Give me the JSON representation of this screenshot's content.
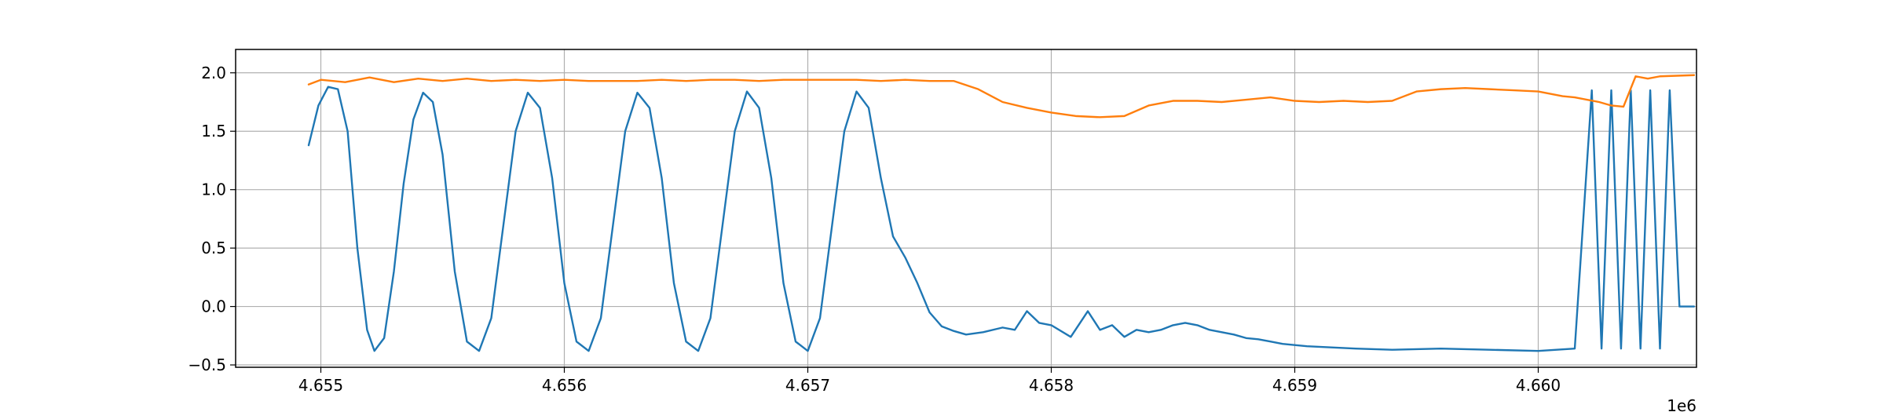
{
  "chart_data": {
    "type": "line",
    "title": "",
    "xlabel": "",
    "ylabel": "",
    "x_offset_label": "1e6",
    "xlim": [
      4.65465,
      4.66065
    ],
    "ylim": [
      -0.52,
      2.2
    ],
    "x_ticks": [
      4.655,
      4.656,
      4.657,
      4.658,
      4.659,
      4.66
    ],
    "x_tick_labels": [
      "4.655",
      "4.656",
      "4.657",
      "4.658",
      "4.659",
      "4.660"
    ],
    "y_ticks": [
      -0.5,
      0.0,
      0.5,
      1.0,
      1.5,
      2.0
    ],
    "y_tick_labels": [
      "−0.5",
      "0.0",
      "0.5",
      "1.0",
      "1.5",
      "2.0"
    ],
    "grid": true,
    "legend": "none",
    "series": [
      {
        "color": "#1f77b4",
        "x": [
          4.65495,
          4.65499,
          4.65503,
          4.65507,
          4.65511,
          4.65515,
          4.65519,
          4.65522,
          4.65526,
          4.6553,
          4.65534,
          4.65538,
          4.65542,
          4.65546,
          4.6555,
          4.65555,
          4.6556,
          4.65565,
          4.6557,
          4.65575,
          4.6558,
          4.65585,
          4.6559,
          4.65595,
          4.656,
          4.65605,
          4.6561,
          4.65615,
          4.6562,
          4.65625,
          4.6563,
          4.65635,
          4.6564,
          4.65645,
          4.6565,
          4.65655,
          4.6566,
          4.65665,
          4.6567,
          4.65675,
          4.6568,
          4.65685,
          4.6569,
          4.65695,
          4.657,
          4.65705,
          4.6571,
          4.65715,
          4.6572,
          4.65725,
          4.6573,
          4.65735,
          4.6574,
          4.65745,
          4.6575,
          4.65755,
          4.6576,
          4.65765,
          4.65772,
          4.6578,
          4.65785,
          4.6579,
          4.65795,
          4.658,
          4.65808,
          4.65815,
          4.6582,
          4.65825,
          4.6583,
          4.65835,
          4.6584,
          4.65845,
          4.6585,
          4.65855,
          4.6586,
          4.65865,
          4.6587,
          4.65875,
          4.6588,
          4.65885,
          4.6589,
          4.65895,
          4.659,
          4.65905,
          4.65915,
          4.65925,
          4.6594,
          4.6596,
          4.6598,
          4.66,
          4.66015,
          4.66022,
          4.66026,
          4.6603,
          4.66034,
          4.66038,
          4.66042,
          4.66046,
          4.6605,
          4.66054,
          4.66058,
          4.66062,
          4.66064
        ],
        "values": [
          1.38,
          1.72,
          1.88,
          1.86,
          1.5,
          0.5,
          -0.2,
          -0.38,
          -0.27,
          0.3,
          1.05,
          1.6,
          1.83,
          1.75,
          1.3,
          0.3,
          -0.3,
          -0.38,
          -0.1,
          0.7,
          1.5,
          1.83,
          1.7,
          1.1,
          0.2,
          -0.3,
          -0.38,
          -0.1,
          0.7,
          1.5,
          1.83,
          1.7,
          1.1,
          0.2,
          -0.3,
          -0.38,
          -0.1,
          0.7,
          1.5,
          1.84,
          1.7,
          1.1,
          0.2,
          -0.3,
          -0.38,
          -0.1,
          0.7,
          1.5,
          1.84,
          1.7,
          1.1,
          0.6,
          0.42,
          0.2,
          -0.05,
          -0.17,
          -0.21,
          -0.24,
          -0.22,
          -0.18,
          -0.2,
          -0.04,
          -0.14,
          -0.16,
          -0.26,
          -0.04,
          -0.2,
          -0.16,
          -0.26,
          -0.2,
          -0.22,
          -0.2,
          -0.16,
          -0.14,
          -0.16,
          -0.2,
          -0.22,
          -0.24,
          -0.27,
          -0.28,
          -0.3,
          -0.32,
          -0.33,
          -0.34,
          -0.35,
          -0.36,
          -0.37,
          -0.36,
          -0.37,
          -0.38,
          -0.36,
          1.85,
          -0.36,
          1.85,
          -0.36,
          1.85,
          -0.36,
          1.85,
          -0.36,
          1.85,
          0.0,
          0.0,
          0.0
        ]
      },
      {
        "color": "#ff7f0e",
        "x": [
          4.65495,
          4.655,
          4.6551,
          4.6552,
          4.6553,
          4.6554,
          4.6555,
          4.6556,
          4.6557,
          4.6558,
          4.6559,
          4.656,
          4.6561,
          4.6562,
          4.6563,
          4.6564,
          4.6565,
          4.6566,
          4.6567,
          4.6568,
          4.6569,
          4.657,
          4.6571,
          4.6572,
          4.6573,
          4.6574,
          4.6575,
          4.6576,
          4.6577,
          4.6578,
          4.6579,
          4.658,
          4.6581,
          4.6582,
          4.6583,
          4.6584,
          4.6585,
          4.6586,
          4.6587,
          4.6588,
          4.6589,
          4.659,
          4.6591,
          4.6592,
          4.6593,
          4.6594,
          4.6595,
          4.6596,
          4.6597,
          4.6598,
          4.6599,
          4.66,
          4.6601,
          4.66015,
          4.6602,
          4.66025,
          4.6603,
          4.66035,
          4.6604,
          4.66045,
          4.6605,
          4.66064
        ],
        "values": [
          1.9,
          1.94,
          1.92,
          1.96,
          1.92,
          1.95,
          1.93,
          1.95,
          1.93,
          1.94,
          1.93,
          1.94,
          1.93,
          1.93,
          1.93,
          1.94,
          1.93,
          1.94,
          1.94,
          1.93,
          1.94,
          1.94,
          1.94,
          1.94,
          1.93,
          1.94,
          1.93,
          1.93,
          1.86,
          1.75,
          1.7,
          1.66,
          1.63,
          1.62,
          1.63,
          1.72,
          1.76,
          1.76,
          1.75,
          1.77,
          1.79,
          1.76,
          1.75,
          1.76,
          1.75,
          1.76,
          1.84,
          1.86,
          1.87,
          1.86,
          1.85,
          1.84,
          1.8,
          1.79,
          1.77,
          1.75,
          1.72,
          1.71,
          1.97,
          1.95,
          1.97,
          1.98
        ]
      }
    ]
  }
}
